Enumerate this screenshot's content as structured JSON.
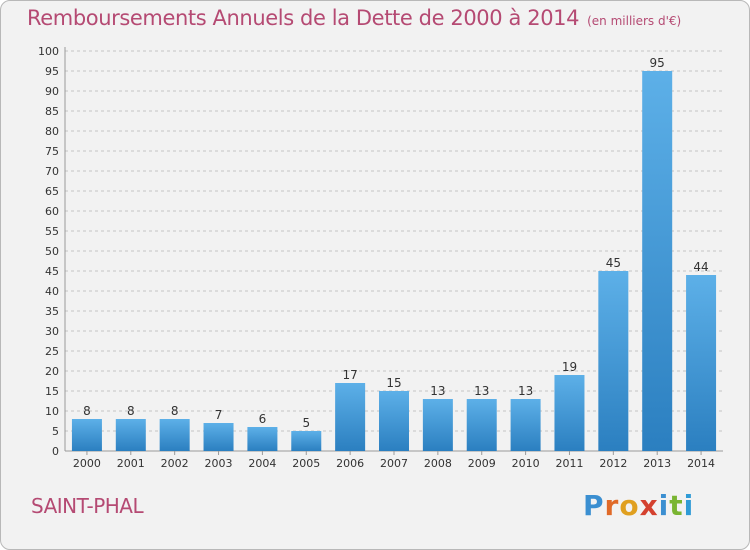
{
  "chart_data": {
    "type": "bar",
    "title": "Remboursements Annuels de la Dette de 2000 à 2014",
    "subtitle": "(en milliers d'€)",
    "categories": [
      "2000",
      "2001",
      "2002",
      "2003",
      "2004",
      "2005",
      "2006",
      "2007",
      "2008",
      "2009",
      "2010",
      "2011",
      "2012",
      "2013",
      "2014"
    ],
    "values": [
      8,
      8,
      8,
      7,
      6,
      5,
      17,
      15,
      13,
      13,
      13,
      19,
      45,
      95,
      44
    ],
    "ylim": [
      0,
      100
    ],
    "ytick_step": 5,
    "grid": "horizontal dashed",
    "bar_color": "#3a96d8"
  },
  "place_name": "SAINT-PHAL",
  "logo": {
    "text": "Proxiti",
    "letter_colors": [
      "#3b8fd1",
      "#e06a28",
      "#e0a020",
      "#d4412f",
      "#3b8fd1",
      "#7ab532",
      "#2f9bd6"
    ]
  }
}
